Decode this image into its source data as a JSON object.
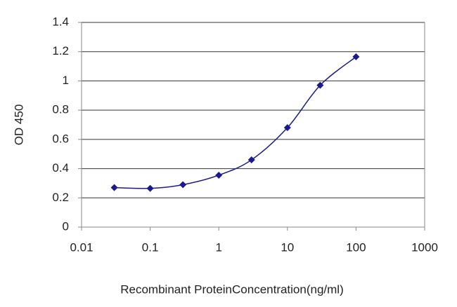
{
  "chart_data": {
    "type": "line",
    "x_label": "Recombinant ProteinConcentration(ng/ml)",
    "y_label": "OD 450",
    "x": [
      0.03,
      0.1,
      0.3,
      1,
      3,
      10,
      30,
      100
    ],
    "series": [
      {
        "color": "#1a1a8c",
        "values": [
          0.27,
          0.265,
          0.29,
          0.355,
          0.46,
          0.68,
          0.97,
          1.165
        ]
      }
    ],
    "xscale": "log",
    "xlim": [
      0.01,
      1000
    ],
    "xticks": [
      0.01,
      0.1,
      1,
      10,
      100,
      1000
    ],
    "ylim": [
      0,
      1.4
    ],
    "yticks": [
      0,
      0.2,
      0.4,
      0.6,
      0.8,
      1,
      1.2,
      1.4
    ],
    "grid": true
  }
}
